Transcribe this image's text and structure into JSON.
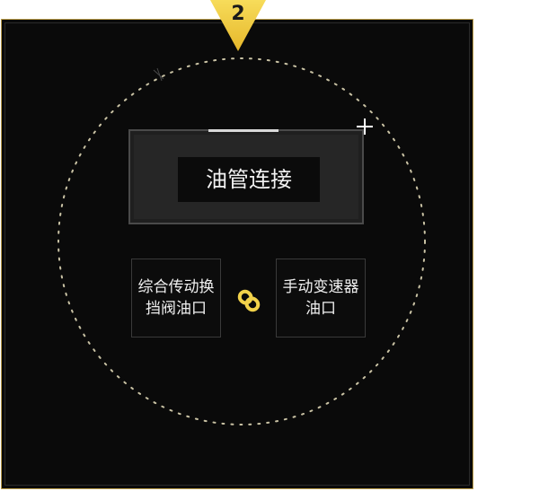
{
  "step": {
    "number": "2"
  },
  "main": {
    "label": "油管连接"
  },
  "parts": {
    "left": {
      "label": "综合传动换\n挡阀油口"
    },
    "right": {
      "label": "手动变速器\n油口"
    }
  },
  "icons": {
    "link": "link-icon",
    "crosshair": "crosshair-icon",
    "badge": "step-badge-triangle"
  },
  "colors": {
    "panel_border": "#b89a48",
    "badge": "#f0c830",
    "circle": "#c9c2a4",
    "link": "#f2d24a"
  }
}
